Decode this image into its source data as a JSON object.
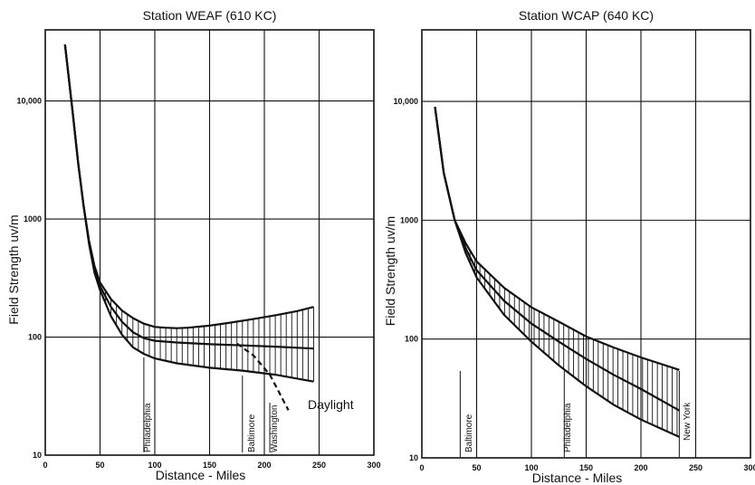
{
  "chart_data": [
    {
      "type": "area",
      "title": "Station WEAF (610 KC)",
      "xlabel": "Distance - Miles",
      "ylabel": "Field Strength uv/m",
      "xlim": [
        0,
        300
      ],
      "ylim": [
        10,
        40000
      ],
      "y_scale": "log",
      "x_ticks": [
        0,
        50,
        100,
        150,
        200,
        250,
        300
      ],
      "y_ticks": [
        10,
        100,
        1000,
        10000
      ],
      "y_tick_labels": [
        "10",
        "100",
        "1000",
        "10,000"
      ],
      "grid": true,
      "series": [
        {
          "name": "",
          "x": [
            18,
            25,
            30,
            35,
            40,
            45,
            50,
            60,
            70,
            80,
            90,
            100,
            110,
            120,
            130,
            150,
            170,
            190,
            210,
            230,
            245
          ],
          "values": [
            30000,
            8000,
            3000,
            1300,
            650,
            400,
            290,
            210,
            168,
            145,
            130,
            122,
            120,
            119,
            120,
            125,
            133,
            142,
            153,
            166,
            180
          ]
        },
        {
          "name": "",
          "x": [
            18,
            25,
            30,
            35,
            40,
            45,
            50,
            60,
            70,
            80,
            90,
            100,
            120,
            150,
            180,
            210,
            245
          ],
          "values": [
            30000,
            8000,
            3000,
            1300,
            630,
            380,
            270,
            180,
            135,
            110,
            98,
            93,
            90,
            87,
            85,
            83,
            80
          ]
        },
        {
          "name": "",
          "x": [
            18,
            25,
            30,
            35,
            40,
            45,
            50,
            60,
            70,
            80,
            90,
            100,
            120,
            150,
            180,
            210,
            245
          ],
          "values": [
            30000,
            8000,
            3000,
            1300,
            610,
            350,
            250,
            150,
            105,
            82,
            72,
            66,
            60,
            55,
            52,
            48,
            42
          ]
        },
        {
          "name": "Daylight",
          "x": [
            175,
            190,
            205,
            215,
            222
          ],
          "values": [
            88,
            70,
            48,
            32,
            24
          ]
        }
      ],
      "annotations": [
        {
          "text": "Philadelphia",
          "x": 90
        },
        {
          "text": "Baltimore",
          "x": 180
        },
        {
          "text": "Washington",
          "x": 205
        },
        {
          "text": "Daylight",
          "x": 235
        }
      ]
    },
    {
      "type": "area",
      "title": "Station WCAP (640 KC)",
      "xlabel": "Distance - Miles",
      "ylabel": "Field Strength uv/m",
      "xlim": [
        0,
        300
      ],
      "ylim": [
        10,
        40000
      ],
      "y_scale": "log",
      "x_ticks": [
        0,
        50,
        100,
        150,
        200,
        250,
        300
      ],
      "y_ticks": [
        10,
        100,
        1000,
        10000
      ],
      "y_tick_labels": [
        "10",
        "100",
        "1000",
        "10,000"
      ],
      "grid": true,
      "series": [
        {
          "name": "",
          "x": [
            12,
            20,
            30,
            40,
            50,
            75,
            100,
            125,
            150,
            175,
            200,
            235
          ],
          "values": [
            9000,
            2500,
            1000,
            640,
            450,
            270,
            185,
            140,
            105,
            85,
            70,
            55
          ]
        },
        {
          "name": "",
          "x": [
            12,
            20,
            30,
            40,
            50,
            75,
            100,
            125,
            150,
            175,
            200,
            235
          ],
          "values": [
            9000,
            2500,
            1000,
            580,
            380,
            210,
            135,
            95,
            68,
            50,
            38,
            25
          ]
        },
        {
          "name": "",
          "x": [
            12,
            20,
            30,
            40,
            50,
            75,
            100,
            125,
            150,
            175,
            200,
            235
          ],
          "values": [
            9000,
            2500,
            1000,
            530,
            330,
            160,
            95,
            60,
            40,
            28,
            21,
            15
          ]
        }
      ],
      "annotations": [
        {
          "text": "Baltimore",
          "x": 35
        },
        {
          "text": "Philadelphia",
          "x": 130
        },
        {
          "text": "New York",
          "x": 235
        }
      ]
    }
  ]
}
